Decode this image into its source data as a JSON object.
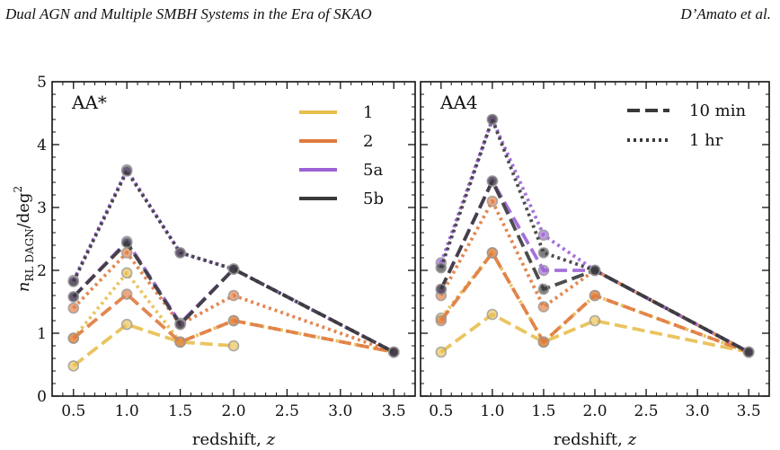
{
  "header": {
    "left": "Dual AGN and Multiple SMBH Systems in the Era of SKAO",
    "right": "D’Amato et al."
  },
  "colors": {
    "1": "#E8BE4E",
    "2": "#E07A3E",
    "5a": "#9B62D6",
    "5b": "#3A3A3A"
  },
  "chart_data": [
    {
      "type": "line",
      "panel_label": "AA*",
      "xlabel": "redshift, z",
      "ylabel": "n_RL DAGN / deg^2",
      "xlim": [
        0.3,
        3.7
      ],
      "ylim": [
        0,
        5
      ],
      "xticks": [
        "0.5",
        "1.0",
        "1.5",
        "2.0",
        "2.5",
        "3.0",
        "3.5"
      ],
      "yticks": [
        "0",
        "1",
        "2",
        "3",
        "4",
        "5"
      ],
      "legend": {
        "placement": "top-right",
        "entries": [
          "1",
          "2",
          "5a",
          "5b"
        ]
      },
      "series": [
        {
          "name": "1",
          "style": "10 min",
          "points": [
            [
              0.5,
              0.48
            ],
            [
              1.0,
              1.14
            ],
            [
              1.5,
              0.86
            ],
            [
              2.0,
              0.8
            ]
          ]
        },
        {
          "name": "1",
          "style": "1 hr",
          "points": [
            [
              0.5,
              0.92
            ],
            [
              1.0,
              1.96
            ],
            [
              1.5,
              0.86
            ],
            [
              2.0,
              1.2
            ],
            [
              3.5,
              0.7
            ]
          ]
        },
        {
          "name": "2",
          "style": "10 min",
          "points": [
            [
              0.5,
              0.92
            ],
            [
              1.0,
              1.62
            ],
            [
              1.5,
              0.86
            ],
            [
              2.0,
              1.2
            ],
            [
              3.5,
              0.7
            ]
          ]
        },
        {
          "name": "2",
          "style": "1 hr",
          "points": [
            [
              0.5,
              1.4
            ],
            [
              1.0,
              2.28
            ],
            [
              1.5,
              1.14
            ],
            [
              2.0,
              1.6
            ],
            [
              3.5,
              0.7
            ]
          ]
        },
        {
          "name": "5a",
          "style": "10 min",
          "points": [
            [
              0.5,
              1.58
            ],
            [
              1.0,
              2.46
            ],
            [
              1.5,
              1.16
            ],
            [
              2.0,
              2.02
            ],
            [
              3.5,
              0.7
            ]
          ]
        },
        {
          "name": "5a",
          "style": "1 hr",
          "points": [
            [
              0.5,
              1.84
            ],
            [
              1.0,
              3.6
            ],
            [
              1.5,
              2.28
            ],
            [
              2.0,
              2.02
            ],
            [
              3.5,
              0.7
            ]
          ]
        },
        {
          "name": "5b",
          "style": "10 min",
          "points": [
            [
              0.5,
              1.58
            ],
            [
              1.0,
              2.44
            ],
            [
              1.5,
              1.14
            ],
            [
              2.0,
              2.02
            ],
            [
              3.5,
              0.7
            ]
          ]
        },
        {
          "name": "5b",
          "style": "1 hr",
          "points": [
            [
              0.5,
              1.82
            ],
            [
              1.0,
              3.58
            ],
            [
              1.5,
              2.28
            ],
            [
              2.0,
              2.02
            ],
            [
              3.5,
              0.7
            ]
          ]
        }
      ]
    },
    {
      "type": "line",
      "panel_label": "AA4",
      "xlabel": "redshift, z",
      "xlim": [
        0.3,
        3.7
      ],
      "ylim": [
        0,
        5
      ],
      "xticks": [
        "0.5",
        "1.0",
        "1.5",
        "2.0",
        "2.5",
        "3.0",
        "3.5"
      ],
      "legend": {
        "placement": "top-right",
        "entries": [
          "10 min",
          "1 hr"
        ]
      },
      "series": [
        {
          "name": "1",
          "style": "10 min",
          "points": [
            [
              0.5,
              0.7
            ],
            [
              1.0,
              1.3
            ],
            [
              1.5,
              0.86
            ],
            [
              2.0,
              1.2
            ],
            [
              3.5,
              0.7
            ]
          ]
        },
        {
          "name": "1",
          "style": "1 hr",
          "points": [
            [
              0.5,
              1.24
            ],
            [
              1.0,
              2.28
            ],
            [
              1.5,
              0.86
            ],
            [
              2.0,
              1.6
            ],
            [
              3.5,
              0.7
            ]
          ]
        },
        {
          "name": "2",
          "style": "10 min",
          "points": [
            [
              0.5,
              1.2
            ],
            [
              1.0,
              2.28
            ],
            [
              1.5,
              0.86
            ],
            [
              2.0,
              1.6
            ],
            [
              3.5,
              0.7
            ]
          ]
        },
        {
          "name": "2",
          "style": "1 hr",
          "points": [
            [
              0.5,
              1.6
            ],
            [
              1.0,
              3.1
            ],
            [
              1.5,
              1.42
            ],
            [
              2.0,
              2.0
            ],
            [
              3.5,
              0.7
            ]
          ]
        },
        {
          "name": "5a",
          "style": "10 min",
          "points": [
            [
              0.5,
              1.7
            ],
            [
              1.0,
              3.42
            ],
            [
              1.5,
              2.0
            ],
            [
              2.0,
              2.0
            ],
            [
              3.5,
              0.7
            ]
          ]
        },
        {
          "name": "5a",
          "style": "1 hr",
          "points": [
            [
              0.5,
              2.12
            ],
            [
              1.0,
              4.4
            ],
            [
              1.5,
              2.56
            ],
            [
              2.0,
              2.0
            ],
            [
              3.5,
              0.7
            ]
          ]
        },
        {
          "name": "5b",
          "style": "10 min",
          "points": [
            [
              0.5,
              1.7
            ],
            [
              1.0,
              3.42
            ],
            [
              1.5,
              1.7
            ],
            [
              2.0,
              2.0
            ],
            [
              3.5,
              0.7
            ]
          ]
        },
        {
          "name": "5b",
          "style": "1 hr",
          "points": [
            [
              0.5,
              2.04
            ],
            [
              1.0,
              4.4
            ],
            [
              1.5,
              2.28
            ],
            [
              2.0,
              2.0
            ],
            [
              3.5,
              0.7
            ]
          ]
        }
      ]
    }
  ]
}
